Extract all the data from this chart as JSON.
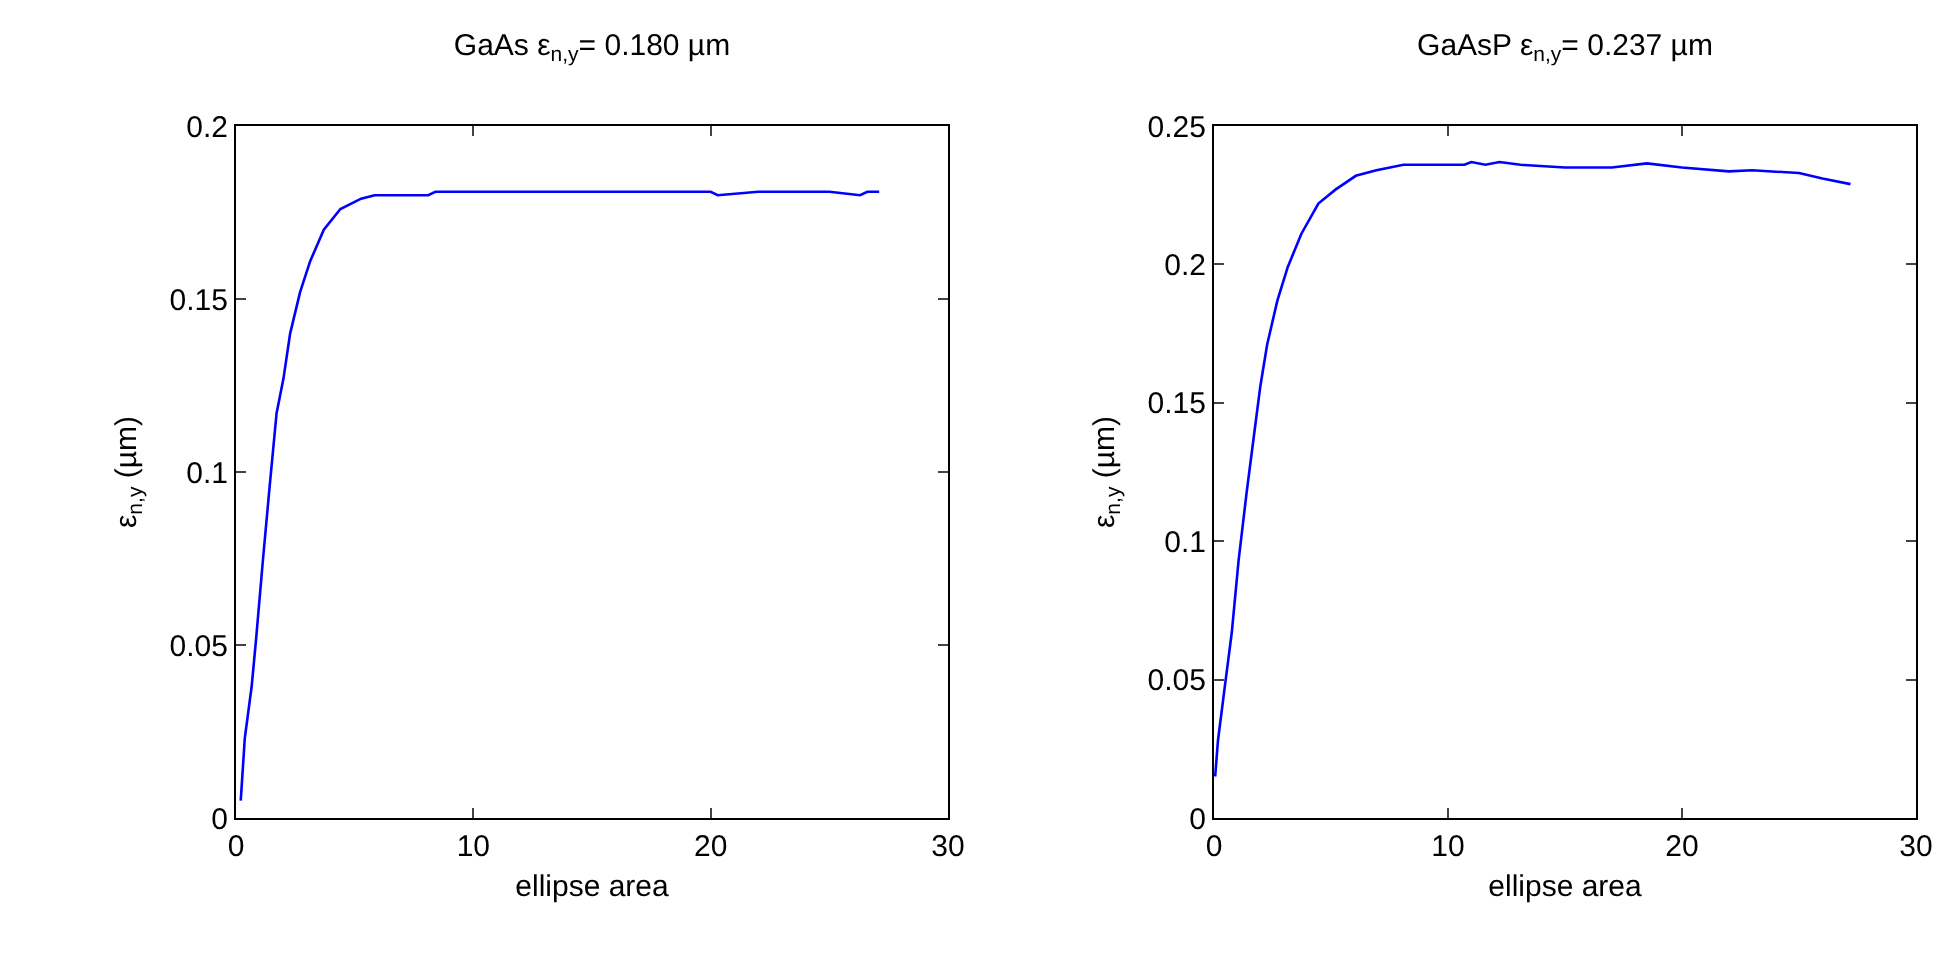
{
  "chart_data": [
    {
      "type": "line",
      "title": "GaAs ε$_{n,y}$= 0.180 µm",
      "xlabel": "ellipse area",
      "ylabel": "ε$_{n,y}$ (µm)",
      "xlim": [
        0,
        30
      ],
      "xticks": [
        0,
        10,
        20,
        30
      ],
      "ylim": [
        0,
        0.2
      ],
      "yticks": [
        0,
        0.05,
        0.1,
        0.15,
        0.2
      ],
      "grid": false,
      "legend": false,
      "series": [
        {
          "color": "#0000ff",
          "x": [
            0.2,
            0.37,
            0.66,
            0.85,
            1.14,
            1.42,
            1.71,
            2.0,
            2.28,
            2.7,
            3.13,
            3.7,
            4.4,
            5.27,
            5.84,
            8.1,
            8.4,
            12,
            15,
            18,
            20,
            20.3,
            22,
            25,
            26.3,
            26.6,
            27.1
          ],
          "values": [
            0.005,
            0.023,
            0.038,
            0.052,
            0.075,
            0.096,
            0.117,
            0.127,
            0.14,
            0.152,
            0.161,
            0.17,
            0.176,
            0.179,
            0.18,
            0.18,
            0.181,
            0.181,
            0.181,
            0.181,
            0.181,
            0.18,
            0.181,
            0.181,
            0.18,
            0.181,
            0.181
          ]
        }
      ]
    },
    {
      "type": "line",
      "title": "GaAsP ε$_{n,y}$= 0.237 µm",
      "xlabel": "ellipse area",
      "ylabel": "ε$_{n,y}$ (µm)",
      "xlim": [
        0,
        30
      ],
      "xticks": [
        0,
        10,
        20,
        30
      ],
      "ylim": [
        0,
        0.25
      ],
      "yticks": [
        0,
        0.05,
        0.1,
        0.15,
        0.2,
        0.25
      ],
      "grid": false,
      "legend": false,
      "series": [
        {
          "color": "#0000ff",
          "x": [
            0.05,
            0.17,
            0.47,
            0.76,
            1.05,
            1.4,
            1.69,
            1.98,
            2.27,
            2.71,
            3.15,
            3.73,
            4.46,
            5.19,
            6.06,
            6.94,
            8.1,
            10.7,
            11.0,
            11.6,
            12.2,
            13.1,
            15,
            17,
            18.5,
            20,
            22,
            23,
            25,
            26,
            27.2
          ],
          "values": [
            0.015,
            0.028,
            0.048,
            0.067,
            0.093,
            0.118,
            0.137,
            0.156,
            0.171,
            0.187,
            0.199,
            0.211,
            0.222,
            0.227,
            0.232,
            0.234,
            0.236,
            0.236,
            0.237,
            0.236,
            0.237,
            0.236,
            0.235,
            0.235,
            0.2365,
            0.235,
            0.2336,
            0.234,
            0.233,
            0.231,
            0.229
          ]
        }
      ]
    }
  ]
}
